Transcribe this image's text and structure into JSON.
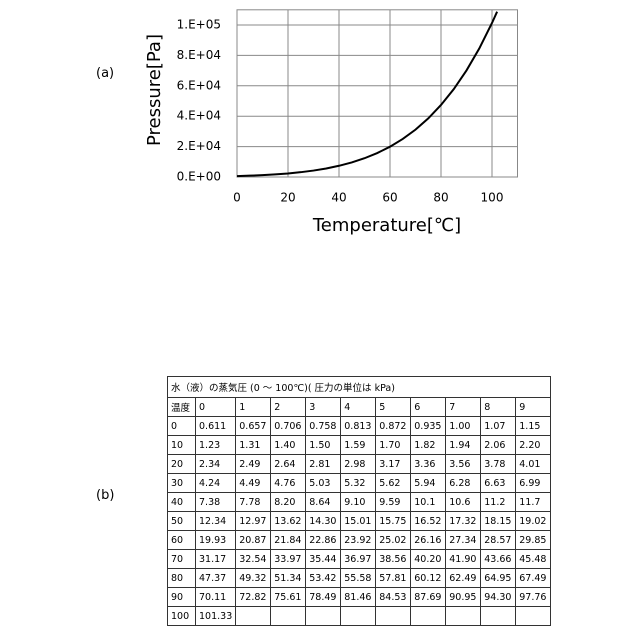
{
  "labels": {
    "a": "(a)",
    "b": "(b)"
  },
  "chart_data": {
    "type": "line",
    "xlabel": "Temperature[℃]",
    "ylabel": "Pressure[Pa]",
    "x": [
      0,
      5,
      10,
      15,
      20,
      25,
      30,
      35,
      40,
      45,
      50,
      55,
      60,
      65,
      70,
      75,
      80,
      85,
      90,
      95,
      100,
      102
    ],
    "series": [
      {
        "color": "#000000",
        "values": [
          611,
          872,
          1230,
          1700,
          2340,
          3170,
          4240,
          5620,
          7380,
          9590,
          12340,
          15750,
          19930,
          25020,
          31170,
          38560,
          47370,
          57810,
          70110,
          84530,
          101330,
          108780
        ]
      }
    ],
    "xlim": [
      0,
      110
    ],
    "ylim": [
      0,
      110000
    ],
    "xticks": [
      0,
      20,
      40,
      60,
      80,
      100
    ],
    "yticks": [
      {
        "value": 0,
        "label": "0.E+00"
      },
      {
        "value": 20000,
        "label": "2.E+04"
      },
      {
        "value": 40000,
        "label": "4.E+04"
      },
      {
        "value": 60000,
        "label": "6.E+04"
      },
      {
        "value": 80000,
        "label": "8.E+04"
      },
      {
        "value": 100000,
        "label": "1.E+05"
      }
    ],
    "grid": true
  },
  "table": {
    "title": "水（液）の蒸気圧 (0 ～ 100℃)( 圧力の単位は kPa)",
    "header": [
      "温度",
      "0",
      "1",
      "2",
      "3",
      "4",
      "5",
      "6",
      "7",
      "8",
      "9"
    ],
    "rows": [
      [
        "0",
        "0.611",
        "0.657",
        "0.706",
        "0.758",
        "0.813",
        "0.872",
        "0.935",
        "1.00",
        "1.07",
        "1.15"
      ],
      [
        "10",
        "1.23",
        "1.31",
        "1.40",
        "1.50",
        "1.59",
        "1.70",
        "1.82",
        "1.94",
        "2.06",
        "2.20"
      ],
      [
        "20",
        "2.34",
        "2.49",
        "2.64",
        "2.81",
        "2.98",
        "3.17",
        "3.36",
        "3.56",
        "3.78",
        "4.01"
      ],
      [
        "30",
        "4.24",
        "4.49",
        "4.76",
        "5.03",
        "5.32",
        "5.62",
        "5.94",
        "6.28",
        "6.63",
        "6.99"
      ],
      [
        "40",
        "7.38",
        "7.78",
        "8.20",
        "8.64",
        "9.10",
        "9.59",
        "10.1",
        "10.6",
        "11.2",
        "11.7"
      ],
      [
        "50",
        "12.34",
        "12.97",
        "13.62",
        "14.30",
        "15.01",
        "15.75",
        "16.52",
        "17.32",
        "18.15",
        "19.02"
      ],
      [
        "60",
        "19.93",
        "20.87",
        "21.84",
        "22.86",
        "23.92",
        "25.02",
        "26.16",
        "27.34",
        "28.57",
        "29.85"
      ],
      [
        "70",
        "31.17",
        "32.54",
        "33.97",
        "35.44",
        "36.97",
        "38.56",
        "40.20",
        "41.90",
        "43.66",
        "45.48"
      ],
      [
        "80",
        "47.37",
        "49.32",
        "51.34",
        "53.42",
        "55.58",
        "57.81",
        "60.12",
        "62.49",
        "64.95",
        "67.49"
      ],
      [
        "90",
        "70.11",
        "72.82",
        "75.61",
        "78.49",
        "81.46",
        "84.53",
        "87.69",
        "90.95",
        "94.30",
        "97.76"
      ],
      [
        "100",
        "101.33"
      ]
    ]
  }
}
